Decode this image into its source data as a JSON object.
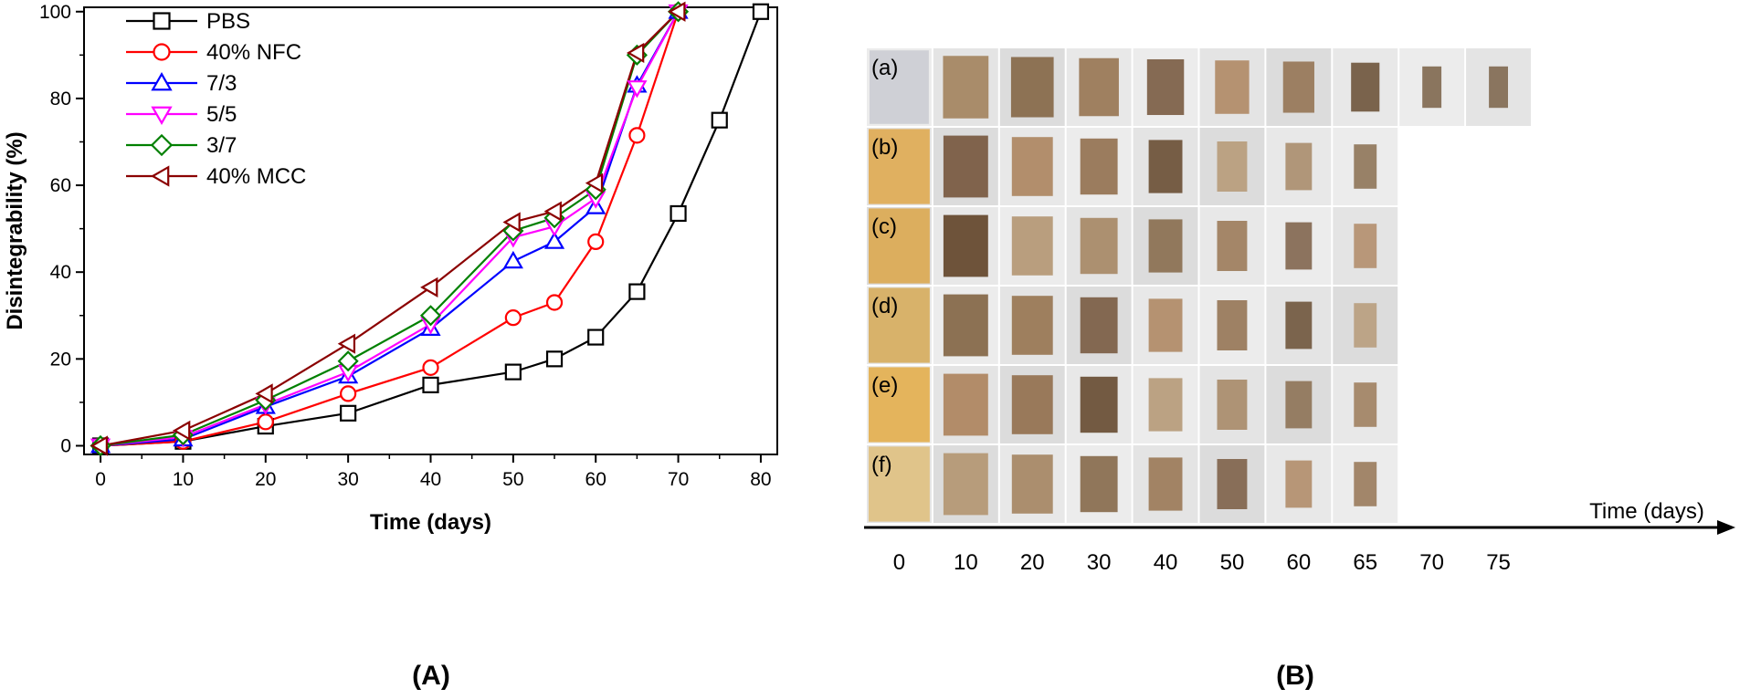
{
  "chart_data": [
    {
      "type": "line",
      "panel_label": "(A)",
      "xlabel": "Time (days)",
      "ylabel": "Disintegrability (%)",
      "xlim": [
        -2,
        82
      ],
      "ylim": [
        -2,
        101
      ],
      "xticks": [
        "0",
        "10",
        "20",
        "30",
        "40",
        "50",
        "60",
        "70",
        "80"
      ],
      "yticks": [
        "0",
        "20",
        "40",
        "60",
        "80",
        "100"
      ],
      "legend_position": "top-left",
      "series": [
        {
          "name": "PBS",
          "color": "#000000",
          "marker": "square",
          "x": [
            0,
            10,
            20,
            30,
            40,
            50,
            55,
            60,
            65,
            70,
            75,
            80
          ],
          "y": [
            0,
            1,
            4.5,
            7.5,
            14,
            17,
            20,
            25,
            35.5,
            53.5,
            75,
            100
          ]
        },
        {
          "name": "40% NFC",
          "color": "#ff0000",
          "marker": "circle",
          "x": [
            0,
            10,
            20,
            30,
            40,
            50,
            55,
            60,
            65,
            70
          ],
          "y": [
            0,
            1,
            5.5,
            12,
            18,
            29.5,
            33,
            47,
            71.5,
            100
          ]
        },
        {
          "name": "7/3",
          "color": "#0000ff",
          "marker": "triangle-up",
          "x": [
            0,
            10,
            20,
            30,
            40,
            50,
            55,
            60,
            65,
            70
          ],
          "y": [
            0,
            1.5,
            9,
            16,
            27,
            42.5,
            47,
            55,
            83,
            100
          ]
        },
        {
          "name": "5/5",
          "color": "#ff00ff",
          "marker": "triangle-down",
          "x": [
            0,
            10,
            20,
            30,
            40,
            50,
            55,
            60,
            65,
            70
          ],
          "y": [
            0,
            2,
            9.5,
            17,
            28,
            48,
            50.5,
            57,
            82.5,
            100
          ]
        },
        {
          "name": "3/7",
          "color": "#008000",
          "marker": "diamond",
          "x": [
            0,
            10,
            20,
            30,
            40,
            50,
            55,
            60,
            65,
            70
          ],
          "y": [
            0,
            2.5,
            10.5,
            19.5,
            30,
            49.5,
            52.5,
            59,
            90,
            100
          ]
        },
        {
          "name": "40% MCC",
          "color": "#8b0000",
          "marker": "triangle-left",
          "x": [
            0,
            10,
            20,
            30,
            40,
            50,
            55,
            60,
            65,
            70
          ],
          "y": [
            0,
            3.5,
            12,
            23.5,
            36.5,
            51.5,
            54,
            60.5,
            90.5,
            100
          ]
        }
      ]
    },
    {
      "type": "table",
      "panel_label": "(B)",
      "axis_label": "Time (days)",
      "columns": [
        "0",
        "10",
        "20",
        "30",
        "40",
        "50",
        "60",
        "65",
        "70",
        "75"
      ],
      "rows": [
        {
          "label": "(a)",
          "samples": 10
        },
        {
          "label": "(b)",
          "samples": 8
        },
        {
          "label": "(c)",
          "samples": 8
        },
        {
          "label": "(d)",
          "samples": 8
        },
        {
          "label": "(e)",
          "samples": 8
        },
        {
          "label": "(f)",
          "samples": 8
        }
      ]
    }
  ]
}
